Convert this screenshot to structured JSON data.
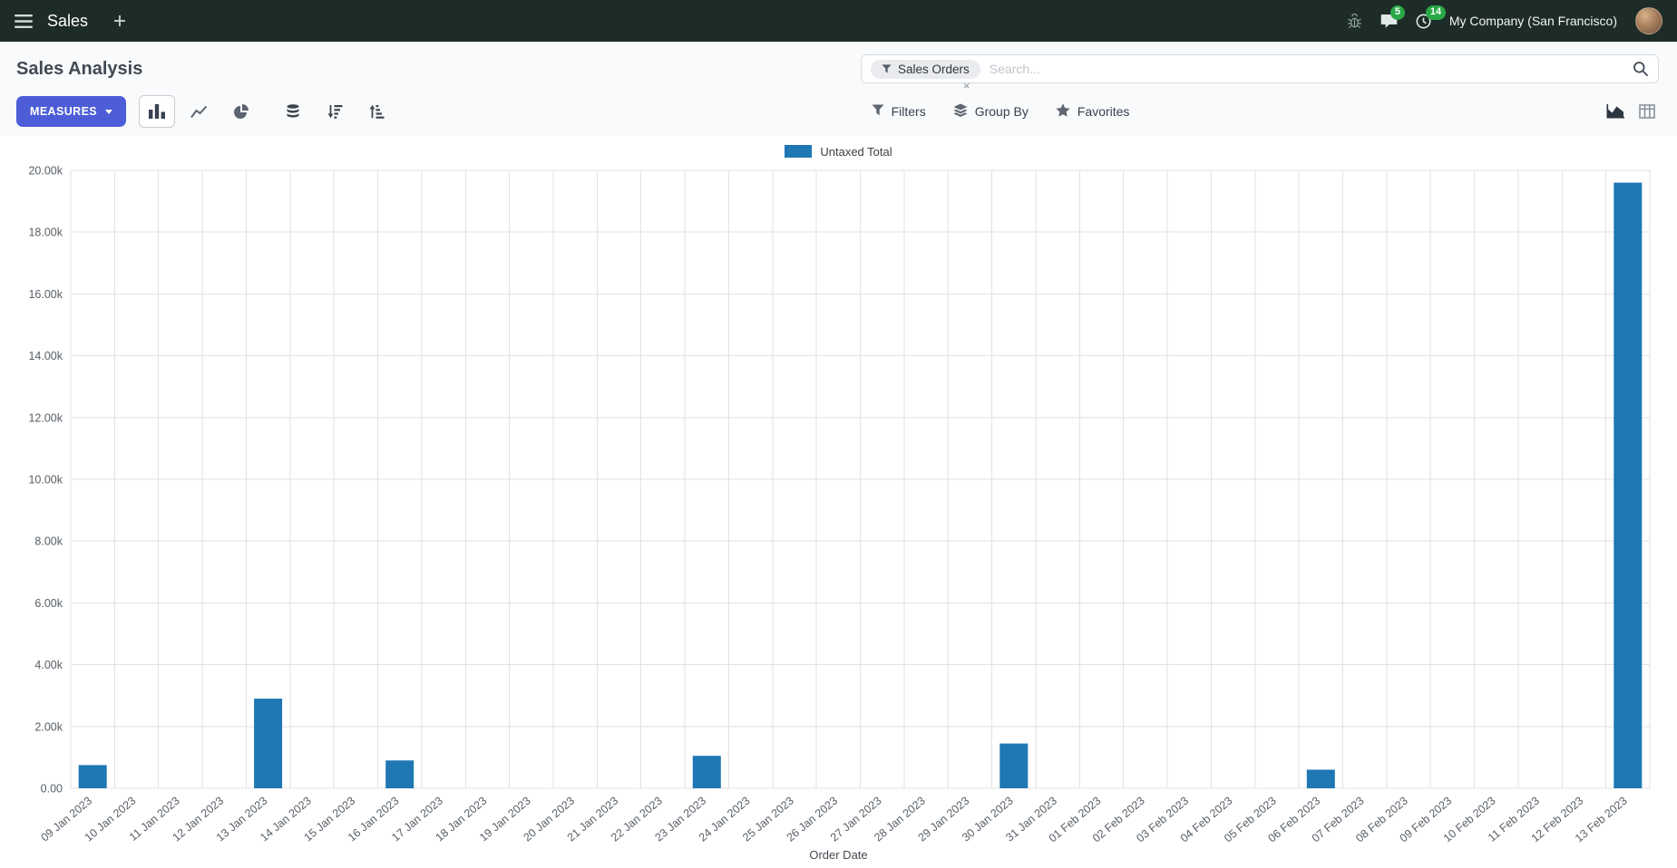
{
  "navbar": {
    "app_name": "Sales",
    "company": "My Company (San Francisco)",
    "badges": {
      "messages": "5",
      "activities": "14"
    }
  },
  "control_panel": {
    "title": "Sales Analysis",
    "measures_button": "MEASURES",
    "search": {
      "facet_label": "Sales Orders",
      "facet_remove_glyph": "×",
      "placeholder": "Search..."
    },
    "filters_label": "Filters",
    "group_by_label": "Group By",
    "favorites_label": "Favorites"
  },
  "icons": {
    "caret": "▼",
    "close": "×"
  },
  "chart_data": {
    "type": "bar",
    "title": "",
    "xlabel": "Order Date",
    "ylabel": "",
    "legend": [
      "Untaxed Total"
    ],
    "legend_position": "top",
    "grid": true,
    "ylim": [
      0,
      20000
    ],
    "y_ticks": [
      {
        "label": "0.00",
        "value": 0
      },
      {
        "label": "2.00k",
        "value": 2000
      },
      {
        "label": "4.00k",
        "value": 4000
      },
      {
        "label": "6.00k",
        "value": 6000
      },
      {
        "label": "8.00k",
        "value": 8000
      },
      {
        "label": "10.00k",
        "value": 10000
      },
      {
        "label": "12.00k",
        "value": 12000
      },
      {
        "label": "14.00k",
        "value": 14000
      },
      {
        "label": "16.00k",
        "value": 16000
      },
      {
        "label": "18.00k",
        "value": 18000
      },
      {
        "label": "20.00k",
        "value": 20000
      }
    ],
    "categories": [
      "09 Jan 2023",
      "10 Jan 2023",
      "11 Jan 2023",
      "12 Jan 2023",
      "13 Jan 2023",
      "14 Jan 2023",
      "15 Jan 2023",
      "16 Jan 2023",
      "17 Jan 2023",
      "18 Jan 2023",
      "19 Jan 2023",
      "20 Jan 2023",
      "21 Jan 2023",
      "22 Jan 2023",
      "23 Jan 2023",
      "24 Jan 2023",
      "25 Jan 2023",
      "26 Jan 2023",
      "27 Jan 2023",
      "28 Jan 2023",
      "29 Jan 2023",
      "30 Jan 2023",
      "31 Jan 2023",
      "01 Feb 2023",
      "02 Feb 2023",
      "03 Feb 2023",
      "04 Feb 2023",
      "05 Feb 2023",
      "06 Feb 2023",
      "07 Feb 2023",
      "08 Feb 2023",
      "09 Feb 2023",
      "10 Feb 2023",
      "11 Feb 2023",
      "12 Feb 2023",
      "13 Feb 2023"
    ],
    "series": [
      {
        "name": "Untaxed Total",
        "color": "#1f77b4",
        "values": [
          750,
          0,
          0,
          0,
          2900,
          0,
          0,
          900,
          0,
          0,
          0,
          0,
          0,
          0,
          1050,
          0,
          0,
          0,
          0,
          0,
          0,
          1450,
          0,
          0,
          0,
          0,
          0,
          0,
          600,
          0,
          0,
          0,
          0,
          0,
          0,
          19600
        ]
      }
    ]
  }
}
